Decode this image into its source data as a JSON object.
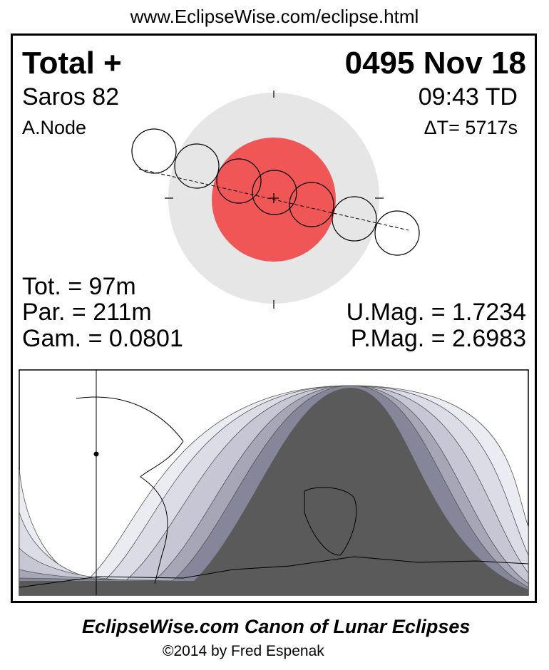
{
  "url": "www.EclipseWise.com/eclipse.html",
  "eclipse": {
    "type": "Total  +",
    "date": "0495 Nov 18",
    "saros": "Saros  82",
    "time": "09:43 TD",
    "node": "A.Node",
    "delta_t": "ΔT=   5717s"
  },
  "stats": {
    "tot": "Tot. =  97m",
    "par": "Par. = 211m",
    "gam": "Gam. = 0.0801",
    "umag": "U.Mag. = 1.7234",
    "pmag": "P.Mag. = 2.6983"
  },
  "colors": {
    "umbra": "#f05656",
    "penumbra": "#e6e6e6",
    "night": "#5a5a5a"
  },
  "footer": {
    "title": "EclipseWise.com Canon of Lunar Eclipses",
    "copyright": "©2014 by Fred Espenak"
  }
}
